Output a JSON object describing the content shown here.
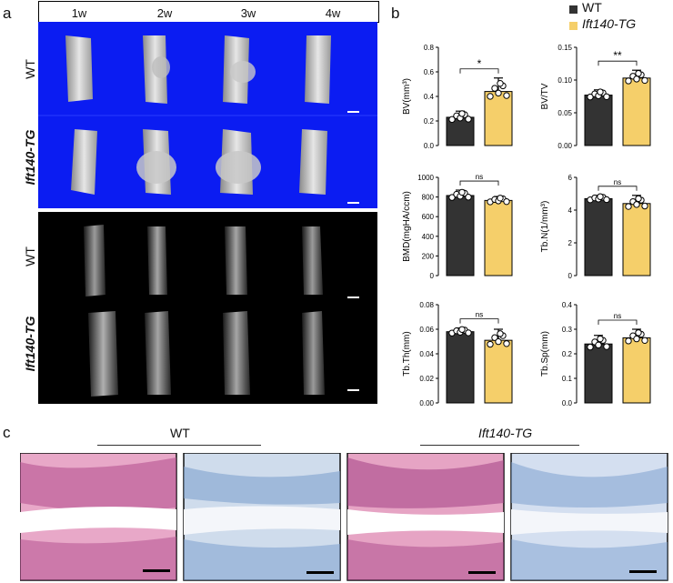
{
  "panel_letters": {
    "a": "a",
    "b": "b",
    "c": "c"
  },
  "panel_a": {
    "columns": [
      "1w",
      "2w",
      "3w",
      "4w"
    ],
    "rows": [
      "WT",
      "Ift140-TG",
      "WT",
      "Ift140-TG"
    ]
  },
  "legend": [
    {
      "label": "WT",
      "color": "#333333"
    },
    {
      "label": "Ift140-TG",
      "color": "#f5cf6a"
    }
  ],
  "chart_data": [
    {
      "type": "bar",
      "ylabel": "BV(mm³)",
      "ylim": [
        0,
        0.8
      ],
      "ticks": [
        "0.0",
        "0.2",
        "0.4",
        "0.6",
        "0.8"
      ],
      "categories": [
        "WT",
        "Ift140-TG"
      ],
      "values": [
        0.23,
        0.44
      ],
      "errors": [
        0.05,
        0.11
      ],
      "significance": "*"
    },
    {
      "type": "bar",
      "ylabel": "BV/TV",
      "ylim": [
        0,
        0.15
      ],
      "ticks": [
        "0.00",
        "0.05",
        "0.10",
        "0.15"
      ],
      "categories": [
        "WT",
        "Ift140-TG"
      ],
      "values": [
        0.077,
        0.103
      ],
      "errors": [
        0.008,
        0.012
      ],
      "significance": "**"
    },
    {
      "type": "bar",
      "ylabel": "BMD(mgHA/ccm)",
      "ylim": [
        0,
        1000
      ],
      "ticks": [
        "0",
        "200",
        "400",
        "600",
        "800",
        "1000"
      ],
      "categories": [
        "WT",
        "Ift140-TG"
      ],
      "values": [
        815,
        765
      ],
      "errors": [
        55,
        40
      ],
      "significance": "ns"
    },
    {
      "type": "bar",
      "ylabel": "Tb.N(1/mm³)",
      "ylim": [
        0,
        6
      ],
      "ticks": [
        "0",
        "2",
        "4",
        "6"
      ],
      "categories": [
        "WT",
        "Ift140-TG"
      ],
      "values": [
        4.7,
        4.4
      ],
      "errors": [
        0.2,
        0.5
      ],
      "significance": "ns"
    },
    {
      "type": "bar",
      "ylabel": "Tb.Th(mm)",
      "ylim": [
        0,
        0.08
      ],
      "ticks": [
        "0.00",
        "0.02",
        "0.04",
        "0.06",
        "0.08"
      ],
      "categories": [
        "WT",
        "Ift140-TG"
      ],
      "values": [
        0.058,
        0.051
      ],
      "errors": [
        0.003,
        0.009
      ],
      "significance": "ns"
    },
    {
      "type": "bar",
      "ylabel": "Tb.Sp(mm)",
      "ylim": [
        0,
        0.4
      ],
      "ticks": [
        "0.0",
        "0.1",
        "0.2",
        "0.3",
        "0.4"
      ],
      "categories": [
        "WT",
        "Ift140-TG"
      ],
      "values": [
        0.24,
        0.265
      ],
      "errors": [
        0.035,
        0.035
      ],
      "significance": "ns"
    }
  ],
  "panel_c": {
    "wt_label": "WT",
    "tg_label": "Ift140-TG"
  }
}
